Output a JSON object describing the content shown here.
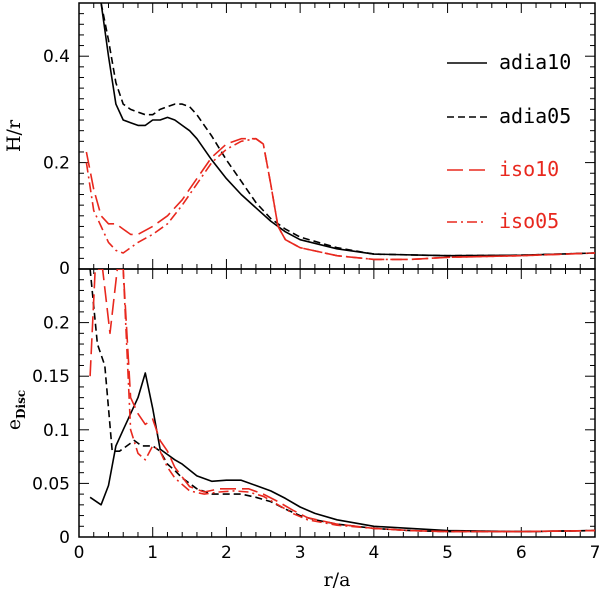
{
  "chart_data": [
    {
      "type": "line",
      "panel": "top",
      "ylabel": "H/r",
      "xlabel": "",
      "xlim": [
        0,
        7
      ],
      "ylim": [
        0,
        0.5
      ],
      "yticks": [
        0,
        0.2,
        0.4
      ],
      "ytick_labels": [
        "0",
        "0.2",
        "0.4"
      ],
      "legend_position": "top-right",
      "series": [
        {
          "name": "adia10",
          "color": "#000000",
          "dash": "solid",
          "x": [
            0.3,
            0.4,
            0.5,
            0.6,
            0.7,
            0.8,
            0.9,
            1.0,
            1.1,
            1.2,
            1.3,
            1.4,
            1.5,
            1.6,
            1.7,
            1.8,
            2.0,
            2.2,
            2.4,
            2.6,
            2.8,
            3.0,
            3.5,
            4.0,
            5.0,
            6.0,
            7.0
          ],
          "y": [
            0.5,
            0.4,
            0.31,
            0.28,
            0.275,
            0.27,
            0.27,
            0.28,
            0.28,
            0.285,
            0.28,
            0.27,
            0.26,
            0.245,
            0.225,
            0.205,
            0.17,
            0.14,
            0.115,
            0.09,
            0.07,
            0.055,
            0.038,
            0.028,
            0.025,
            0.026,
            0.03
          ]
        },
        {
          "name": "adia05",
          "color": "#000000",
          "dash": "dashed",
          "x": [
            0.3,
            0.4,
            0.5,
            0.6,
            0.7,
            0.8,
            0.9,
            1.0,
            1.1,
            1.2,
            1.3,
            1.4,
            1.5,
            1.6,
            1.7,
            1.8,
            2.0,
            2.2,
            2.4,
            2.6,
            2.8,
            3.0,
            3.5,
            4.0,
            5.0,
            6.0,
            7.0
          ],
          "y": [
            0.5,
            0.43,
            0.35,
            0.31,
            0.3,
            0.295,
            0.29,
            0.29,
            0.3,
            0.305,
            0.31,
            0.31,
            0.305,
            0.29,
            0.27,
            0.25,
            0.205,
            0.165,
            0.125,
            0.095,
            0.075,
            0.06,
            0.04,
            0.028,
            0.025,
            0.026,
            0.03
          ]
        },
        {
          "name": "iso10",
          "color": "#e8281e",
          "dash": "long-dash",
          "x": [
            0.1,
            0.2,
            0.3,
            0.4,
            0.5,
            0.6,
            0.7,
            0.8,
            1.0,
            1.2,
            1.4,
            1.6,
            1.8,
            2.0,
            2.2,
            2.4,
            2.5,
            2.6,
            2.7,
            2.8,
            3.0,
            3.5,
            4.0,
            4.5,
            5.0,
            6.0,
            7.0
          ],
          "y": [
            0.22,
            0.15,
            0.1,
            0.085,
            0.085,
            0.075,
            0.065,
            0.065,
            0.08,
            0.1,
            0.13,
            0.17,
            0.21,
            0.235,
            0.245,
            0.245,
            0.235,
            0.16,
            0.08,
            0.055,
            0.04,
            0.025,
            0.018,
            0.018,
            0.022,
            0.025,
            0.03
          ]
        },
        {
          "name": "iso05",
          "color": "#e8281e",
          "dash": "dash-dot",
          "x": [
            0.1,
            0.2,
            0.3,
            0.4,
            0.5,
            0.6,
            0.7,
            0.8,
            1.0,
            1.2,
            1.4,
            1.6,
            1.8,
            2.0,
            2.2,
            2.4,
            2.5,
            2.6,
            2.7,
            2.8,
            3.0,
            3.5,
            4.0,
            4.5,
            5.0,
            6.0,
            7.0
          ],
          "y": [
            0.2,
            0.11,
            0.08,
            0.05,
            0.035,
            0.03,
            0.04,
            0.05,
            0.065,
            0.085,
            0.12,
            0.16,
            0.2,
            0.225,
            0.24,
            0.245,
            0.235,
            0.16,
            0.08,
            0.055,
            0.04,
            0.025,
            0.018,
            0.018,
            0.022,
            0.025,
            0.03
          ]
        }
      ]
    },
    {
      "type": "line",
      "panel": "bottom",
      "ylabel": "e",
      "ylabel_sub": "Disc",
      "xlabel": "r/a",
      "xlim": [
        0,
        7
      ],
      "ylim": [
        0,
        0.25
      ],
      "xticks": [
        0,
        1,
        2,
        3,
        4,
        5,
        6,
        7
      ],
      "xtick_labels": [
        "0",
        "1",
        "2",
        "3",
        "4",
        "5",
        "6",
        "7"
      ],
      "yticks": [
        0,
        0.05,
        0.1,
        0.15,
        0.2
      ],
      "ytick_labels": [
        "0",
        "0.05",
        "0.1",
        "0.15",
        "0.2"
      ],
      "series": [
        {
          "name": "adia10",
          "color": "#000000",
          "dash": "solid",
          "x": [
            0.15,
            0.3,
            0.4,
            0.5,
            0.6,
            0.7,
            0.8,
            0.9,
            1.0,
            1.1,
            1.2,
            1.3,
            1.4,
            1.6,
            1.8,
            2.0,
            2.2,
            2.4,
            2.6,
            2.8,
            3.0,
            3.2,
            3.5,
            4.0,
            4.5,
            5.0,
            6.0,
            7.0
          ],
          "y": [
            0.037,
            0.03,
            0.048,
            0.085,
            0.1,
            0.115,
            0.13,
            0.153,
            0.12,
            0.082,
            0.077,
            0.072,
            0.068,
            0.057,
            0.052,
            0.053,
            0.053,
            0.048,
            0.043,
            0.036,
            0.028,
            0.022,
            0.016,
            0.01,
            0.008,
            0.006,
            0.005,
            0.006
          ]
        },
        {
          "name": "adia05",
          "color": "#000000",
          "dash": "dashed",
          "x": [
            0.15,
            0.25,
            0.35,
            0.45,
            0.55,
            0.65,
            0.75,
            0.85,
            1.0,
            1.1,
            1.2,
            1.3,
            1.4,
            1.6,
            1.8,
            2.0,
            2.2,
            2.4,
            2.6,
            2.8,
            3.0,
            3.2,
            3.5,
            4.0,
            4.5,
            5.0,
            6.0,
            7.0
          ],
          "y": [
            0.25,
            0.18,
            0.16,
            0.08,
            0.08,
            0.085,
            0.09,
            0.085,
            0.085,
            0.08,
            0.068,
            0.062,
            0.055,
            0.045,
            0.04,
            0.04,
            0.04,
            0.037,
            0.033,
            0.026,
            0.02,
            0.016,
            0.012,
            0.008,
            0.006,
            0.005,
            0.005,
            0.006
          ]
        },
        {
          "name": "iso10",
          "color": "#e8281e",
          "dash": "long-dash",
          "x": [
            0.15,
            0.22,
            0.32,
            0.42,
            0.52,
            0.6,
            0.7,
            0.8,
            0.9,
            1.0,
            1.1,
            1.2,
            1.3,
            1.5,
            1.7,
            1.9,
            2.1,
            2.3,
            2.5,
            2.7,
            2.9,
            3.1,
            3.5,
            4.0,
            4.5,
            5.0,
            6.0,
            7.0
          ],
          "y": [
            0.15,
            0.25,
            0.25,
            0.19,
            0.25,
            0.25,
            0.13,
            0.115,
            0.105,
            0.11,
            0.09,
            0.08,
            0.065,
            0.047,
            0.042,
            0.045,
            0.045,
            0.045,
            0.04,
            0.033,
            0.025,
            0.018,
            0.012,
            0.008,
            0.006,
            0.005,
            0.005,
            0.006
          ]
        },
        {
          "name": "iso05",
          "color": "#e8281e",
          "dash": "dash-dot",
          "x": [
            0.6,
            0.7,
            0.8,
            0.9,
            1.0,
            1.1,
            1.2,
            1.3,
            1.5,
            1.7,
            1.9,
            2.1,
            2.3,
            2.5,
            2.7,
            2.9,
            3.1,
            3.5,
            4.0,
            4.5,
            5.0,
            6.0,
            7.0
          ],
          "y": [
            0.25,
            0.1,
            0.078,
            0.072,
            0.085,
            0.08,
            0.065,
            0.055,
            0.043,
            0.04,
            0.042,
            0.043,
            0.042,
            0.038,
            0.03,
            0.022,
            0.016,
            0.011,
            0.008,
            0.006,
            0.005,
            0.005,
            0.006
          ]
        }
      ]
    }
  ]
}
